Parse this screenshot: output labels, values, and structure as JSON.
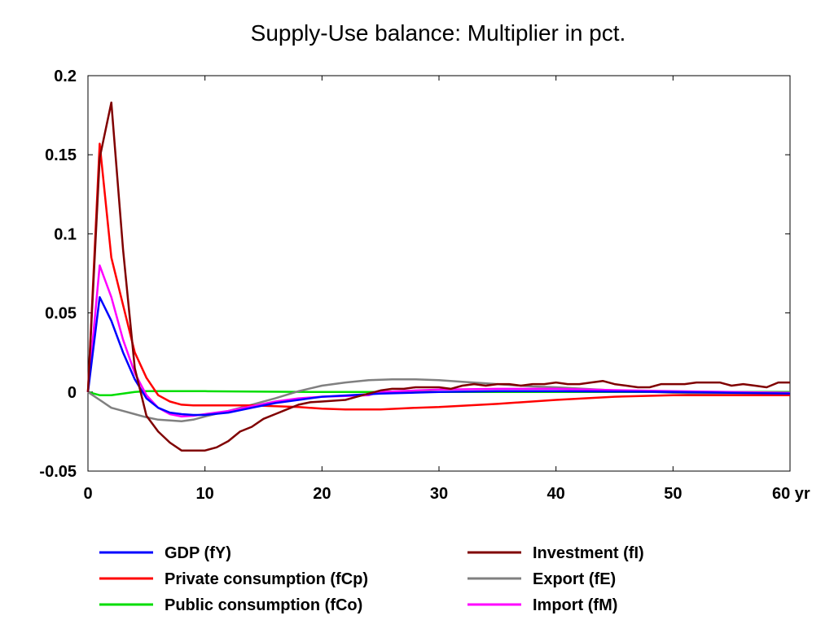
{
  "chart_data": {
    "type": "line",
    "title": "Supply-Use balance: Multiplier in pct.",
    "xlabel": "",
    "ylabel": "",
    "xlim": [
      0,
      60
    ],
    "ylim": [
      -0.05,
      0.2
    ],
    "x_ticks": [
      {
        "value": 0,
        "label": "0"
      },
      {
        "value": 10,
        "label": "10"
      },
      {
        "value": 20,
        "label": "20"
      },
      {
        "value": 30,
        "label": "30"
      },
      {
        "value": 40,
        "label": "40"
      },
      {
        "value": 50,
        "label": "50"
      },
      {
        "value": 60,
        "label": "60 yr"
      }
    ],
    "y_ticks": [
      {
        "value": 0.2,
        "label": "0.2"
      },
      {
        "value": 0.15,
        "label": "0.15"
      },
      {
        "value": 0.1,
        "label": "0.1"
      },
      {
        "value": 0.05,
        "label": "0.05"
      },
      {
        "value": 0,
        "label": "0"
      },
      {
        "value": -0.05,
        "label": "-0.05"
      }
    ],
    "grid": false,
    "legend_position": "bottom",
    "series": [
      {
        "name": "GDP (fY)",
        "color": "#0000ff",
        "points": [
          [
            0,
            0
          ],
          [
            1,
            0.06
          ],
          [
            2,
            0.045
          ],
          [
            3,
            0.025
          ],
          [
            4,
            0.008
          ],
          [
            5,
            -0.004
          ],
          [
            6,
            -0.01
          ],
          [
            7,
            -0.013
          ],
          [
            8,
            -0.014
          ],
          [
            9,
            -0.0145
          ],
          [
            10,
            -0.0145
          ],
          [
            12,
            -0.013
          ],
          [
            14,
            -0.01
          ],
          [
            16,
            -0.007
          ],
          [
            18,
            -0.005
          ],
          [
            20,
            -0.003
          ],
          [
            25,
            -0.001
          ],
          [
            30,
            0
          ],
          [
            35,
            0.0005
          ],
          [
            40,
            0.0005
          ],
          [
            45,
            0.0003
          ],
          [
            50,
            0
          ],
          [
            55,
            -0.0005
          ],
          [
            60,
            -0.001
          ]
        ]
      },
      {
        "name": "Private consumption (fCp)",
        "color": "#ff0000",
        "points": [
          [
            0,
            0
          ],
          [
            1,
            0.157
          ],
          [
            2,
            0.085
          ],
          [
            3,
            0.055
          ],
          [
            4,
            0.025
          ],
          [
            5,
            0.009
          ],
          [
            6,
            -0.002
          ],
          [
            7,
            -0.006
          ],
          [
            8,
            -0.008
          ],
          [
            9,
            -0.0085
          ],
          [
            10,
            -0.0085
          ],
          [
            12,
            -0.0085
          ],
          [
            14,
            -0.0085
          ],
          [
            16,
            -0.009
          ],
          [
            18,
            -0.0095
          ],
          [
            20,
            -0.0105
          ],
          [
            22,
            -0.011
          ],
          [
            25,
            -0.011
          ],
          [
            28,
            -0.01
          ],
          [
            30,
            -0.0095
          ],
          [
            35,
            -0.0075
          ],
          [
            40,
            -0.005
          ],
          [
            45,
            -0.003
          ],
          [
            50,
            -0.002
          ],
          [
            55,
            -0.002
          ],
          [
            60,
            -0.002
          ]
        ]
      },
      {
        "name": "Public consumption (fCo)",
        "color": "#00dd00",
        "points": [
          [
            0,
            0
          ],
          [
            1,
            -0.002
          ],
          [
            2,
            -0.002
          ],
          [
            3,
            -0.001
          ],
          [
            4,
            0
          ],
          [
            5,
            0.0005
          ],
          [
            10,
            0.0005
          ],
          [
            20,
            0
          ],
          [
            30,
            0
          ],
          [
            40,
            0
          ],
          [
            50,
            0
          ],
          [
            60,
            0
          ]
        ]
      },
      {
        "name": "Investment (fI)",
        "color": "#800000",
        "points": [
          [
            0,
            0
          ],
          [
            1,
            0.148
          ],
          [
            2,
            0.183
          ],
          [
            3,
            0.09
          ],
          [
            4,
            0.015
          ],
          [
            5,
            -0.015
          ],
          [
            6,
            -0.025
          ],
          [
            7,
            -0.032
          ],
          [
            8,
            -0.037
          ],
          [
            9,
            -0.037
          ],
          [
            10,
            -0.037
          ],
          [
            11,
            -0.035
          ],
          [
            12,
            -0.031
          ],
          [
            13,
            -0.025
          ],
          [
            14,
            -0.022
          ],
          [
            15,
            -0.017
          ],
          [
            16,
            -0.014
          ],
          [
            17,
            -0.011
          ],
          [
            18,
            -0.008
          ],
          [
            19,
            -0.0065
          ],
          [
            20,
            -0.006
          ],
          [
            21,
            -0.0055
          ],
          [
            22,
            -0.005
          ],
          [
            23,
            -0.003
          ],
          [
            24,
            -0.001
          ],
          [
            25,
            0.001
          ],
          [
            26,
            0.002
          ],
          [
            27,
            0.002
          ],
          [
            28,
            0.003
          ],
          [
            29,
            0.003
          ],
          [
            30,
            0.003
          ],
          [
            31,
            0.002
          ],
          [
            32,
            0.004
          ],
          [
            33,
            0.005
          ],
          [
            34,
            0.004
          ],
          [
            35,
            0.005
          ],
          [
            36,
            0.005
          ],
          [
            37,
            0.004
          ],
          [
            38,
            0.005
          ],
          [
            39,
            0.005
          ],
          [
            40,
            0.006
          ],
          [
            41,
            0.005
          ],
          [
            42,
            0.005
          ],
          [
            43,
            0.006
          ],
          [
            44,
            0.007
          ],
          [
            45,
            0.005
          ],
          [
            46,
            0.004
          ],
          [
            47,
            0.003
          ],
          [
            48,
            0.003
          ],
          [
            49,
            0.005
          ],
          [
            50,
            0.005
          ],
          [
            51,
            0.005
          ],
          [
            52,
            0.006
          ],
          [
            53,
            0.006
          ],
          [
            54,
            0.006
          ],
          [
            55,
            0.004
          ],
          [
            56,
            0.005
          ],
          [
            57,
            0.004
          ],
          [
            58,
            0.003
          ],
          [
            59,
            0.006
          ],
          [
            60,
            0.006
          ]
        ]
      },
      {
        "name": "Export (fE)",
        "color": "#808080",
        "points": [
          [
            0,
            0
          ],
          [
            1,
            -0.005
          ],
          [
            2,
            -0.01
          ],
          [
            3,
            -0.012
          ],
          [
            4,
            -0.014
          ],
          [
            5,
            -0.016
          ],
          [
            6,
            -0.0175
          ],
          [
            7,
            -0.018
          ],
          [
            8,
            -0.0185
          ],
          [
            9,
            -0.0175
          ],
          [
            10,
            -0.0155
          ],
          [
            12,
            -0.012
          ],
          [
            14,
            -0.008
          ],
          [
            16,
            -0.004
          ],
          [
            18,
            0.0005
          ],
          [
            20,
            0.004
          ],
          [
            22,
            0.006
          ],
          [
            24,
            0.0075
          ],
          [
            26,
            0.008
          ],
          [
            28,
            0.008
          ],
          [
            30,
            0.0075
          ],
          [
            32,
            0.0065
          ],
          [
            34,
            0.0055
          ],
          [
            36,
            0.0045
          ],
          [
            38,
            0.0035
          ],
          [
            40,
            0.003
          ],
          [
            45,
            0.001
          ],
          [
            50,
            -0.0005
          ],
          [
            55,
            -0.0015
          ],
          [
            60,
            -0.001
          ]
        ]
      },
      {
        "name": "Import (fM)",
        "color": "#ff00ff",
        "points": [
          [
            0,
            0
          ],
          [
            1,
            0.08
          ],
          [
            2,
            0.06
          ],
          [
            3,
            0.033
          ],
          [
            4,
            0.012
          ],
          [
            5,
            -0.002
          ],
          [
            6,
            -0.01
          ],
          [
            7,
            -0.014
          ],
          [
            8,
            -0.0155
          ],
          [
            9,
            -0.015
          ],
          [
            10,
            -0.014
          ],
          [
            12,
            -0.012
          ],
          [
            14,
            -0.009
          ],
          [
            16,
            -0.006
          ],
          [
            18,
            -0.004
          ],
          [
            20,
            -0.003
          ],
          [
            22,
            -0.0025
          ],
          [
            24,
            -0.002
          ],
          [
            25,
            0
          ],
          [
            28,
            0.001
          ],
          [
            30,
            0.0015
          ],
          [
            35,
            0.002
          ],
          [
            40,
            0.002
          ],
          [
            45,
            0.0012
          ],
          [
            50,
            0.0005
          ],
          [
            55,
            0
          ],
          [
            60,
            -0.0005
          ]
        ]
      }
    ]
  }
}
